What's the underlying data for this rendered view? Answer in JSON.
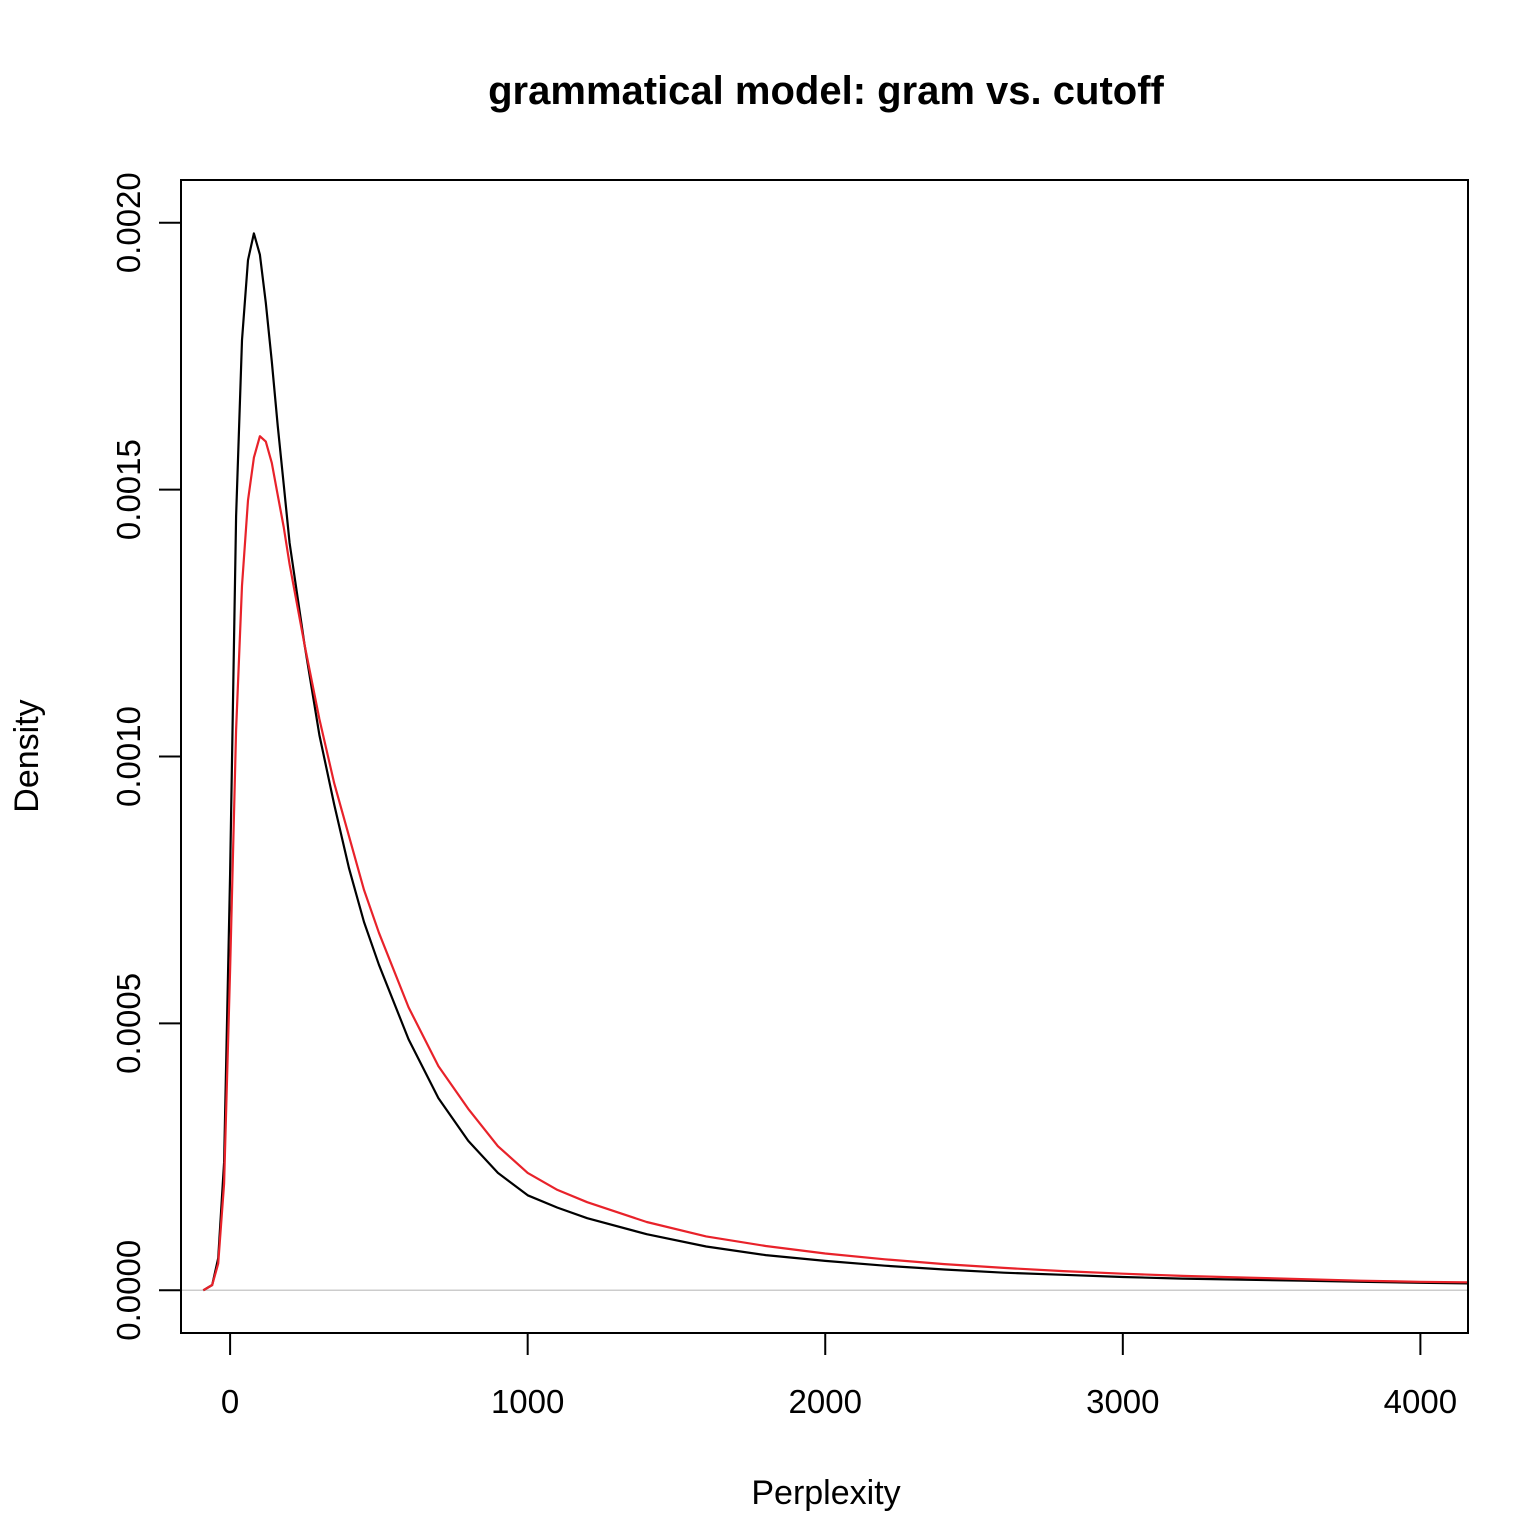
{
  "chart_data": {
    "type": "line",
    "title": "grammatical model: gram vs. cutoff",
    "xlabel": "Perplexity",
    "ylabel": "Density",
    "xlim": [
      -165,
      4160
    ],
    "ylim": [
      -8e-05,
      0.00208
    ],
    "x_ticks": [
      {
        "value": 0,
        "label": "0"
      },
      {
        "value": 1000,
        "label": "1000"
      },
      {
        "value": 2000,
        "label": "2000"
      },
      {
        "value": 3000,
        "label": "3000"
      },
      {
        "value": 4000,
        "label": "4000"
      }
    ],
    "y_ticks": [
      {
        "value": 0,
        "label": "0.0000"
      },
      {
        "value": 0.0005,
        "label": "0.0005"
      },
      {
        "value": 0.001,
        "label": "0.0010"
      },
      {
        "value": 0.0015,
        "label": "0.0015"
      },
      {
        "value": 0.002,
        "label": "0.0020"
      }
    ],
    "zero_line_color": "#cccccc",
    "series": [
      {
        "color": "#000000",
        "x": [
          -90,
          -60,
          -40,
          -20,
          0,
          20,
          40,
          60,
          80,
          100,
          120,
          140,
          160,
          180,
          200,
          250,
          300,
          350,
          400,
          450,
          500,
          600,
          700,
          800,
          900,
          1000,
          1100,
          1200,
          1400,
          1600,
          1800,
          2000,
          2200,
          2400,
          2600,
          2800,
          3000,
          3200,
          3400,
          3600,
          3800,
          4000,
          4160
        ],
        "y": [
          0,
          1e-05,
          6e-05,
          0.00024,
          0.00078,
          0.00145,
          0.00178,
          0.00193,
          0.00198,
          0.00194,
          0.00185,
          0.00174,
          0.00162,
          0.00151,
          0.0014,
          0.00121,
          0.00104,
          0.00091,
          0.00079,
          0.00069,
          0.00061,
          0.00047,
          0.00036,
          0.00028,
          0.00022,
          0.000178,
          0.000155,
          0.000135,
          0.000105,
          8.2e-05,
          6.6e-05,
          5.5e-05,
          4.6e-05,
          3.9e-05,
          3.3e-05,
          2.9e-05,
          2.5e-05,
          2.2e-05,
          2e-05,
          1.8e-05,
          1.6e-05,
          1.4e-05,
          1.3e-05
        ]
      },
      {
        "color": "#e8222a",
        "x": [
          -90,
          -60,
          -40,
          -20,
          0,
          20,
          40,
          60,
          80,
          100,
          120,
          140,
          160,
          180,
          200,
          250,
          300,
          350,
          400,
          450,
          500,
          600,
          700,
          800,
          900,
          1000,
          1100,
          1200,
          1400,
          1600,
          1800,
          2000,
          2200,
          2400,
          2600,
          2800,
          3000,
          3200,
          3400,
          3600,
          3800,
          4000,
          4160
        ],
        "y": [
          0,
          1e-05,
          5e-05,
          0.0002,
          0.0006,
          0.00105,
          0.00132,
          0.00148,
          0.00156,
          0.0016,
          0.00159,
          0.00155,
          0.00149,
          0.00143,
          0.00136,
          0.00121,
          0.00107,
          0.00095,
          0.00085,
          0.00075,
          0.00067,
          0.00053,
          0.00042,
          0.00034,
          0.00027,
          0.00022,
          0.000188,
          0.000165,
          0.000128,
          0.000101,
          8.3e-05,
          6.9e-05,
          5.8e-05,
          4.9e-05,
          4.2e-05,
          3.6e-05,
          3.1e-05,
          2.7e-05,
          2.4e-05,
          2.1e-05,
          1.8e-05,
          1.6e-05,
          1.5e-05
        ]
      }
    ]
  }
}
